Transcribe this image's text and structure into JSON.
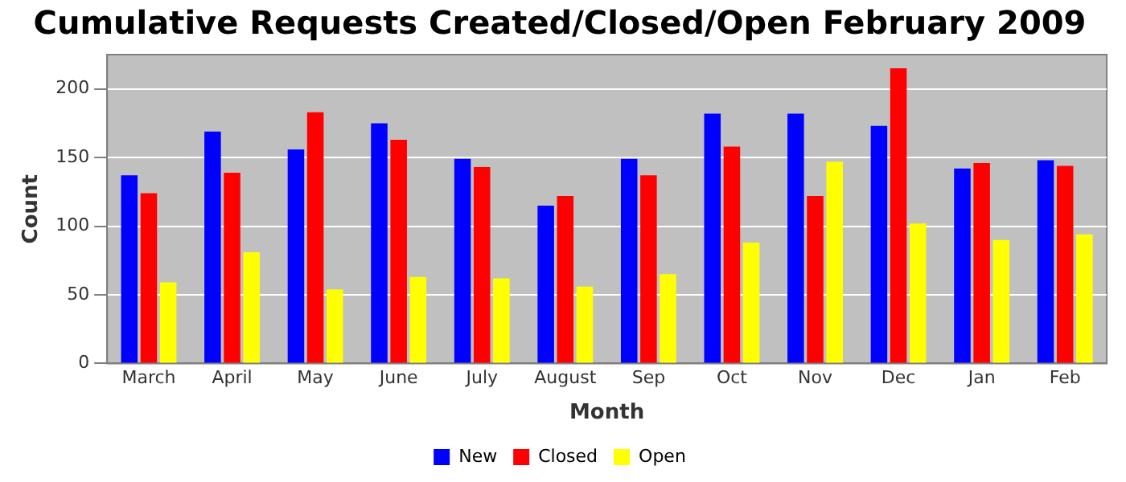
{
  "chart_data": {
    "type": "bar",
    "title": "Cumulative Requests Created/Closed/Open February 2009",
    "xlabel": "Month",
    "ylabel": "Count",
    "categories": [
      "March",
      "April",
      "May",
      "June",
      "July",
      "August",
      "Sep",
      "Oct",
      "Nov",
      "Dec",
      "Jan",
      "Feb"
    ],
    "series": [
      {
        "name": "New",
        "color": "#0000ff",
        "values": [
          137,
          169,
          156,
          175,
          149,
          115,
          149,
          182,
          182,
          173,
          142,
          148
        ]
      },
      {
        "name": "Closed",
        "color": "#ff0000",
        "values": [
          124,
          139,
          183,
          163,
          143,
          122,
          137,
          158,
          122,
          215,
          146,
          144
        ]
      },
      {
        "name": "Open",
        "color": "#ffff00",
        "values": [
          59,
          81,
          54,
          63,
          62,
          56,
          65,
          88,
          147,
          102,
          90,
          94
        ]
      }
    ],
    "ylim": [
      0,
      225
    ],
    "yticks": [
      0,
      50,
      100,
      150,
      200
    ],
    "grid": "y",
    "legend": "bottom"
  }
}
